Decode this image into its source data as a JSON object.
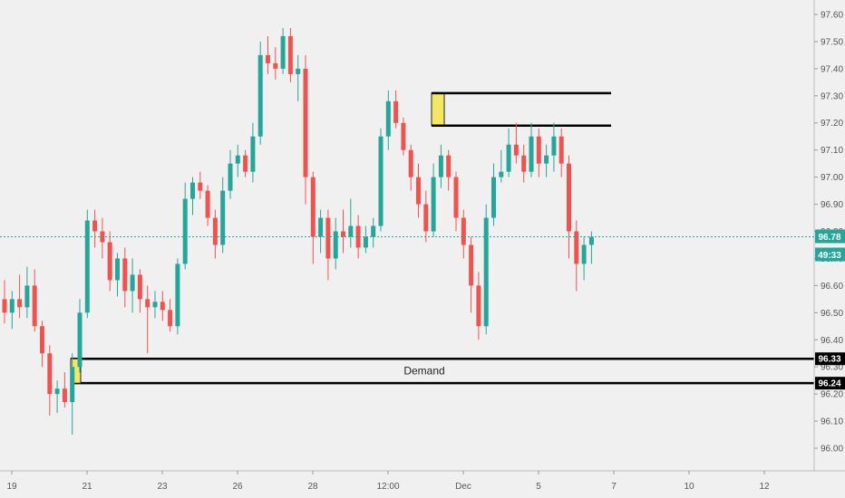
{
  "chart_data": {
    "type": "candlestick",
    "title": "",
    "ylim": [
      95.95,
      97.62
    ],
    "y_ticks": [
      "96.00",
      "96.10",
      "96.20",
      "96.30",
      "96.40",
      "96.50",
      "96.60",
      "96.70",
      "96.80",
      "96.90",
      "97.00",
      "97.10",
      "97.20",
      "97.30",
      "97.40",
      "97.50",
      "97.60"
    ],
    "x_ticks": [
      {
        "label": "19",
        "index": 0
      },
      {
        "label": "21",
        "index": 10
      },
      {
        "label": "23",
        "index": 20
      },
      {
        "label": "26",
        "index": 30
      },
      {
        "label": "28",
        "index": 40
      },
      {
        "label": "12:00",
        "index": 50
      },
      {
        "label": "Dec",
        "index": 60
      },
      {
        "label": "5",
        "index": 70
      },
      {
        "label": "7",
        "index": 80
      },
      {
        "label": "10",
        "index": 90
      },
      {
        "label": "12",
        "index": 100
      }
    ],
    "up_color": "#26a69a",
    "down_color": "#ef5350",
    "candles": [
      [
        96.55,
        96.62,
        96.46,
        96.5
      ],
      [
        96.5,
        96.58,
        96.44,
        96.55
      ],
      [
        96.55,
        96.64,
        96.48,
        96.52
      ],
      [
        96.52,
        96.67,
        96.48,
        96.6
      ],
      [
        96.6,
        96.66,
        96.43,
        96.45
      ],
      [
        96.45,
        96.47,
        96.3,
        96.35
      ],
      [
        96.35,
        96.38,
        96.12,
        96.2
      ],
      [
        96.2,
        96.25,
        96.13,
        96.22
      ],
      [
        96.22,
        96.28,
        96.15,
        96.17
      ],
      [
        96.17,
        96.35,
        96.05,
        96.3
      ],
      [
        96.3,
        96.55,
        96.28,
        96.5
      ],
      [
        96.5,
        96.88,
        96.48,
        96.84
      ],
      [
        96.84,
        96.88,
        96.74,
        96.8
      ],
      [
        96.8,
        96.85,
        96.7,
        96.76
      ],
      [
        96.76,
        96.8,
        96.58,
        96.62
      ],
      [
        96.62,
        96.72,
        96.56,
        96.7
      ],
      [
        96.7,
        96.74,
        96.52,
        96.58
      ],
      [
        96.58,
        96.7,
        96.5,
        96.64
      ],
      [
        96.64,
        96.66,
        96.5,
        96.55
      ],
      [
        96.55,
        96.6,
        96.35,
        96.52
      ],
      [
        96.52,
        96.58,
        96.48,
        96.54
      ],
      [
        96.54,
        96.58,
        96.47,
        96.51
      ],
      [
        96.51,
        96.55,
        96.43,
        96.45
      ],
      [
        96.45,
        96.7,
        96.42,
        96.68
      ],
      [
        96.68,
        96.98,
        96.66,
        96.92
      ],
      [
        96.92,
        97.0,
        96.86,
        96.98
      ],
      [
        96.98,
        97.02,
        96.92,
        96.95
      ],
      [
        96.95,
        96.97,
        96.82,
        96.85
      ],
      [
        96.85,
        96.88,
        96.7,
        96.75
      ],
      [
        96.75,
        97.0,
        96.72,
        96.95
      ],
      [
        96.95,
        97.1,
        96.92,
        97.05
      ],
      [
        97.05,
        97.12,
        97.0,
        97.08
      ],
      [
        97.08,
        97.1,
        97.0,
        97.02
      ],
      [
        97.02,
        97.2,
        96.98,
        97.15
      ],
      [
        97.15,
        97.5,
        97.12,
        97.45
      ],
      [
        97.45,
        97.52,
        97.38,
        97.42
      ],
      [
        97.42,
        97.48,
        97.36,
        97.4
      ],
      [
        97.4,
        97.55,
        97.38,
        97.52
      ],
      [
        97.52,
        97.55,
        97.35,
        97.38
      ],
      [
        97.38,
        97.45,
        97.28,
        97.4
      ],
      [
        97.4,
        97.45,
        96.9,
        97.0
      ],
      [
        97.0,
        97.02,
        96.68,
        96.78
      ],
      [
        96.78,
        96.88,
        96.72,
        96.85
      ],
      [
        96.85,
        96.88,
        96.62,
        96.7
      ],
      [
        96.7,
        96.85,
        96.66,
        96.8
      ],
      [
        96.8,
        96.88,
        96.72,
        96.78
      ],
      [
        96.78,
        96.92,
        96.74,
        96.82
      ],
      [
        96.82,
        96.86,
        96.7,
        96.74
      ],
      [
        96.74,
        96.82,
        96.72,
        96.78
      ],
      [
        96.78,
        96.85,
        96.74,
        96.82
      ],
      [
        96.82,
        97.18,
        96.8,
        97.15
      ],
      [
        97.15,
        97.32,
        97.1,
        97.28
      ],
      [
        97.28,
        97.32,
        97.18,
        97.2
      ],
      [
        97.2,
        97.22,
        97.08,
        97.1
      ],
      [
        97.1,
        97.12,
        96.95,
        97.0
      ],
      [
        97.0,
        97.05,
        96.85,
        96.9
      ],
      [
        96.9,
        96.95,
        96.76,
        96.8
      ],
      [
        96.8,
        97.05,
        96.78,
        97.0
      ],
      [
        97.0,
        97.12,
        96.96,
        97.08
      ],
      [
        97.08,
        97.1,
        96.95,
        97.0
      ],
      [
        97.0,
        97.02,
        96.8,
        96.85
      ],
      [
        96.85,
        96.88,
        96.7,
        96.75
      ],
      [
        96.75,
        96.78,
        96.5,
        96.6
      ],
      [
        96.6,
        96.65,
        96.4,
        96.45
      ],
      [
        96.45,
        96.9,
        96.42,
        96.85
      ],
      [
        96.85,
        97.05,
        96.82,
        97.0
      ],
      [
        97.0,
        97.1,
        96.98,
        97.02
      ],
      [
        97.02,
        97.18,
        97.0,
        97.12
      ],
      [
        97.12,
        97.2,
        97.05,
        97.08
      ],
      [
        97.08,
        97.12,
        96.98,
        97.02
      ],
      [
        97.02,
        97.2,
        97.0,
        97.15
      ],
      [
        97.15,
        97.18,
        97.0,
        97.05
      ],
      [
        97.05,
        97.12,
        97.0,
        97.08
      ],
      [
        97.08,
        97.2,
        97.02,
        97.15
      ],
      [
        97.15,
        97.18,
        97.0,
        97.05
      ],
      [
        97.05,
        97.08,
        96.7,
        96.8
      ],
      [
        96.8,
        96.84,
        96.58,
        96.68
      ],
      [
        96.68,
        96.78,
        96.62,
        96.75
      ],
      [
        96.75,
        96.8,
        96.68,
        96.78
      ]
    ],
    "current_price": "96.78",
    "countdown": "49:33",
    "zones": [
      {
        "label": "Demand",
        "top": 96.33,
        "bottom": 96.24,
        "top_label": "96.33",
        "bottom_label": "96.24"
      }
    ],
    "resistance_lines": [
      97.31,
      97.19
    ]
  }
}
